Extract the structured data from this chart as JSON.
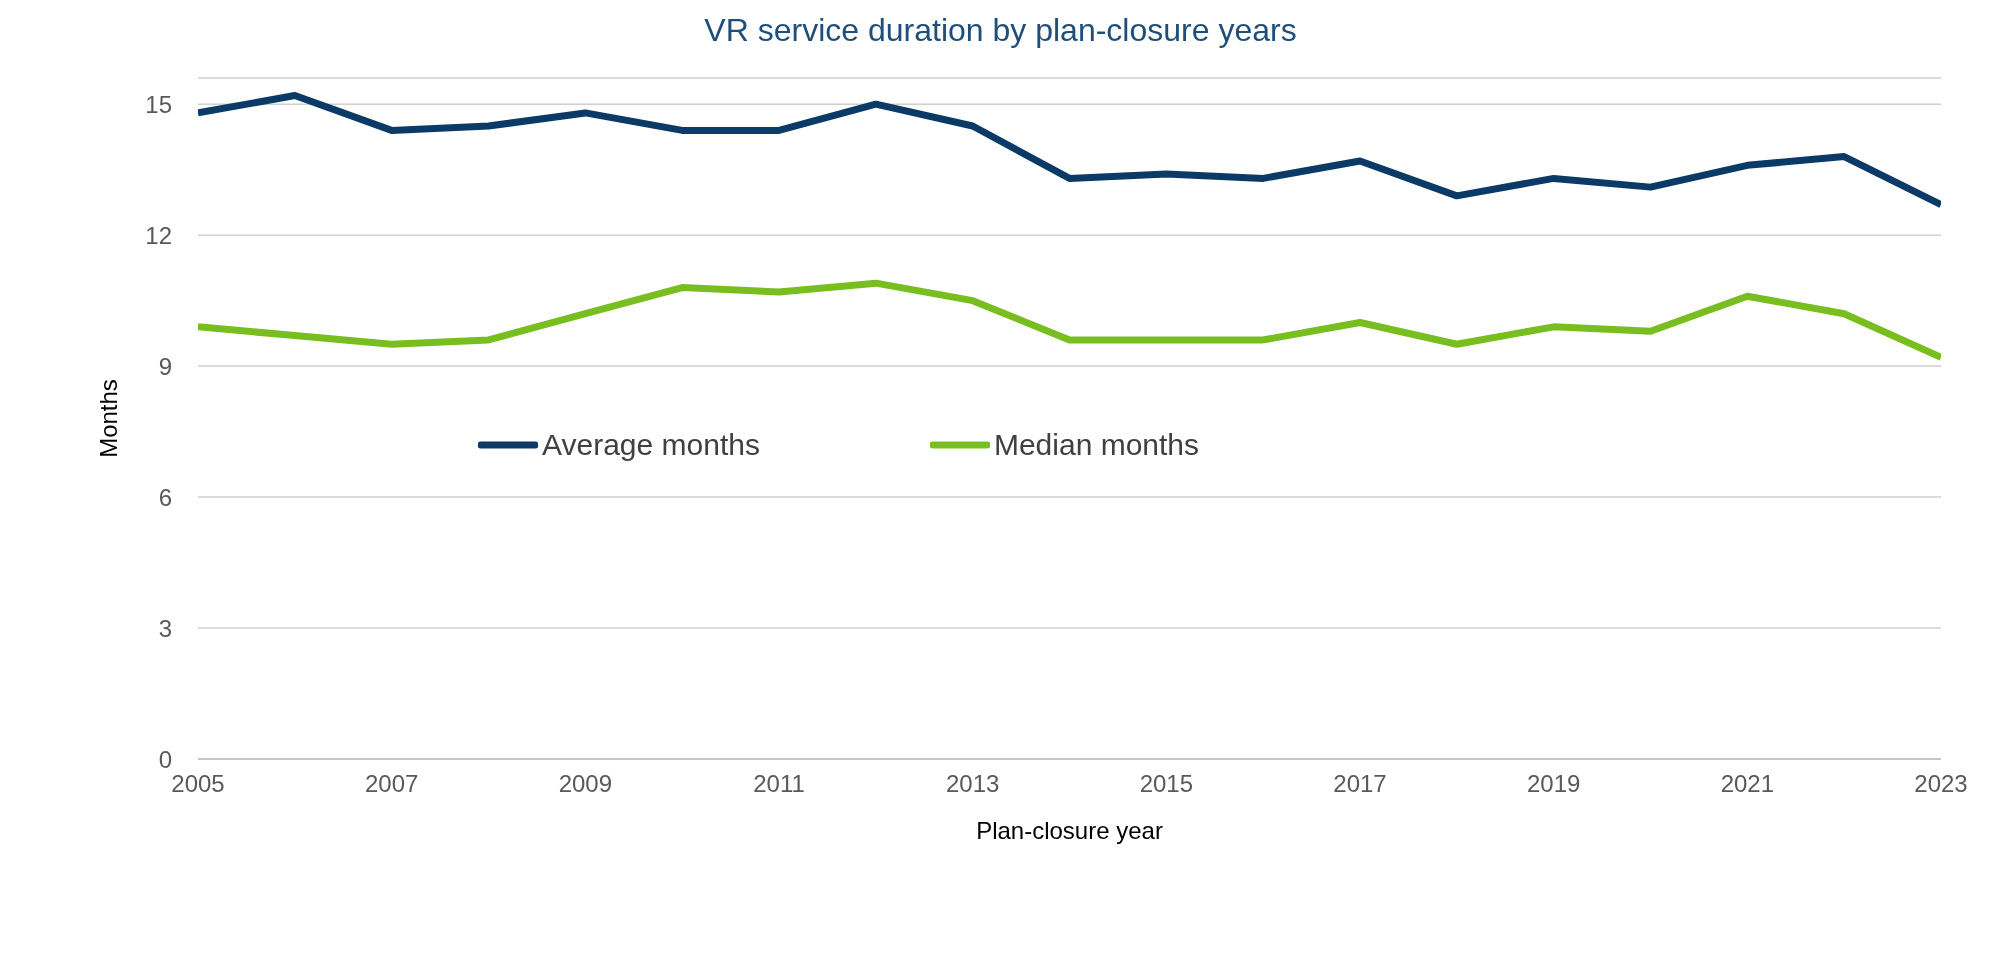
{
  "chart_data": {
    "type": "line",
    "title": "VR service duration by plan-closure years",
    "xlabel": "Plan-closure year",
    "ylabel": "Months",
    "x": [
      2005,
      2006,
      2007,
      2008,
      2009,
      2010,
      2011,
      2012,
      2013,
      2014,
      2015,
      2016,
      2017,
      2018,
      2019,
      2020,
      2021,
      2022,
      2023
    ],
    "series": [
      {
        "name": "Average months",
        "color": "#0b3a66",
        "values": [
          14.8,
          15.2,
          14.4,
          14.5,
          14.8,
          14.4,
          14.4,
          15.0,
          14.5,
          13.3,
          13.4,
          13.3,
          13.7,
          12.9,
          13.3,
          13.1,
          13.6,
          13.8,
          12.7
        ]
      },
      {
        "name": "Median months",
        "color": "#78be20",
        "values": [
          9.9,
          9.7,
          9.5,
          9.6,
          10.2,
          10.8,
          10.7,
          10.9,
          10.5,
          9.6,
          9.6,
          9.6,
          10.0,
          9.5,
          9.9,
          9.8,
          10.6,
          10.2,
          9.2
        ]
      }
    ],
    "xlim": [
      2005,
      2023
    ],
    "xticks": [
      2005,
      2007,
      2009,
      2011,
      2013,
      2015,
      2017,
      2019,
      2021,
      2023
    ],
    "ylim": [
      0,
      15.6
    ],
    "yticks": [
      0,
      3,
      6,
      9,
      12,
      15
    ],
    "grid": "y",
    "legend": "center",
    "marker": "none",
    "line_style": "solid"
  }
}
